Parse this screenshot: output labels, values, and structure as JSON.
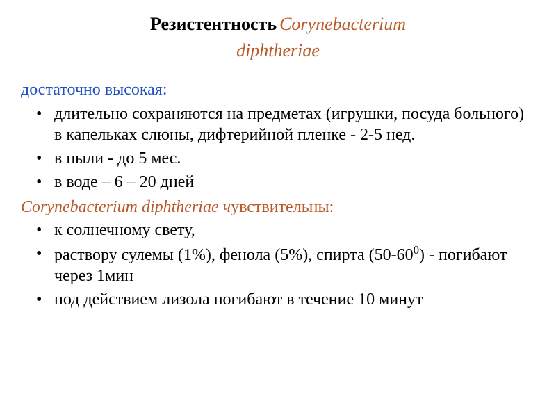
{
  "title": {
    "main": "Резистентность",
    "italic_part1": "Corynebacterium",
    "italic_part2": "diphtheriae"
  },
  "subheading1": "достаточно высокая:",
  "bullets1": {
    "item0": "длительно сохраняются на предметах (игрушки, посуда больного) в капельках слюны, дифтерийной пленке - 2-5 нед.",
    "item1": "в пыли - до 5 мес.",
    "item2": "в воде – 6 – 20 дней"
  },
  "subheading2_italic": "Corynebacterium diphtheriae ч",
  "subheading2_plain": "увствительны:",
  "bullets2": {
    "item0": "к солнечному свету,",
    "item1_prefix": "раствору сулемы (1%), фенола (5%), спирта (50-60",
    "item1_sup": "0",
    "item1_suffix": ") - погибают через 1мин",
    "item2": "под действием лизола погибают в течение 10 минут"
  },
  "colors": {
    "title_black": "#000000",
    "orange": "#b85a2a",
    "blue": "#2050c0",
    "text": "#000000",
    "background": "#ffffff"
  },
  "typography": {
    "title_fontsize": 26,
    "body_fontsize": 24,
    "font_family": "Times New Roman"
  }
}
